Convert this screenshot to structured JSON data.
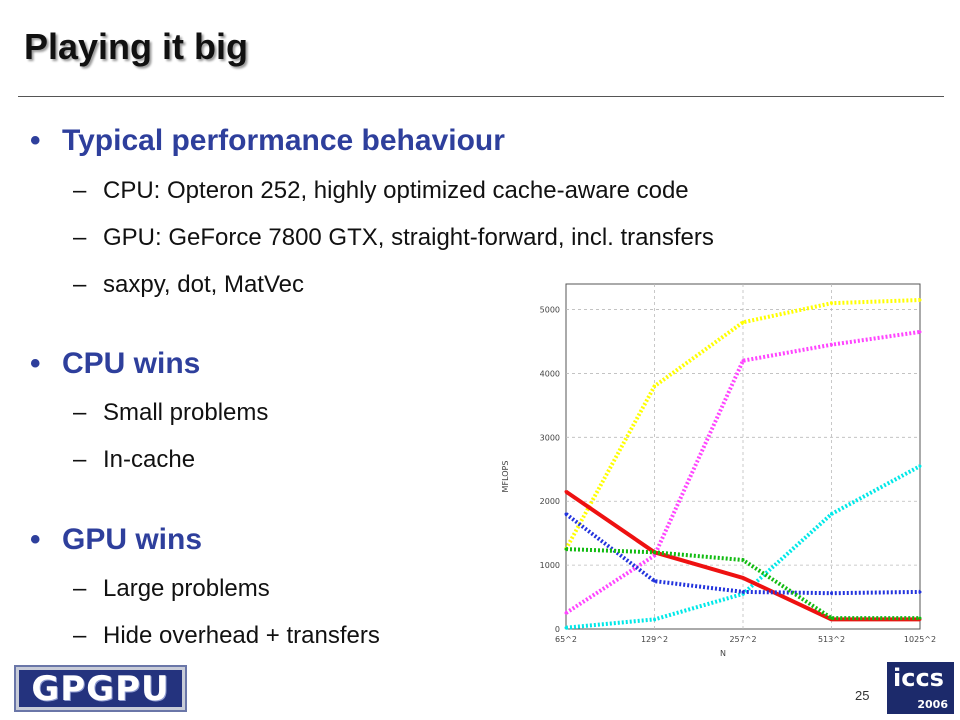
{
  "slide": {
    "title": "Playing it big",
    "page_number": "25"
  },
  "bullets": [
    {
      "label": "Typical performance behaviour",
      "items": [
        "CPU: Opteron 252, highly optimized cache-aware code",
        "GPU: GeForce 7800 GTX, straight-forward, incl. transfers",
        "saxpy, dot, MatVec"
      ]
    },
    {
      "label": "CPU wins",
      "items": [
        "Small problems",
        "In-cache"
      ]
    },
    {
      "label": "GPU wins",
      "items": [
        "Large problems",
        "Hide overhead + transfers"
      ]
    }
  ],
  "bullet_glyph": "•",
  "dash_glyph": "–",
  "logos": {
    "left": "GPGPU",
    "right_top": "iccs",
    "right_bottom": "2006"
  },
  "chart_data": {
    "type": "line",
    "xlabel": "N",
    "ylabel": "MFLOPS",
    "categories": [
      "65^2",
      "129^2",
      "257^2",
      "513^2",
      "1025^2"
    ],
    "ylim": [
      0,
      5400
    ],
    "yticks": [
      0,
      1000,
      2000,
      3000,
      4000,
      5000
    ],
    "grid": true,
    "series": [
      {
        "color": "#ffff00",
        "style": "dotted",
        "values": [
          1250,
          3800,
          4800,
          5100,
          5150
        ]
      },
      {
        "color": "#ff44ff",
        "style": "dotted",
        "values": [
          250,
          1150,
          4200,
          4450,
          4650
        ]
      },
      {
        "color": "#00e8e8",
        "style": "dotted",
        "values": [
          20,
          150,
          550,
          1800,
          2550
        ]
      },
      {
        "color": "#ee1111",
        "style": "solid",
        "values": [
          2150,
          1200,
          800,
          150,
          150
        ]
      },
      {
        "color": "#2233dd",
        "style": "dotted",
        "values": [
          1800,
          750,
          580,
          560,
          580
        ]
      },
      {
        "color": "#11bb11",
        "style": "dotted",
        "values": [
          1250,
          1200,
          1080,
          170,
          170
        ]
      }
    ]
  }
}
